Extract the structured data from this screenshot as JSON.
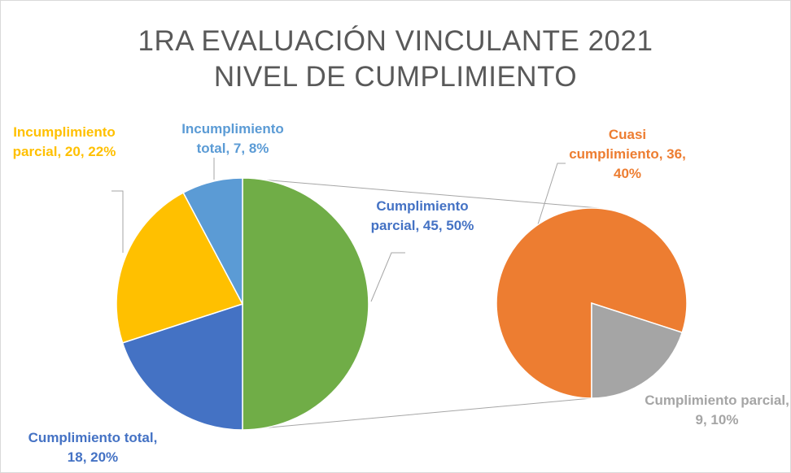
{
  "chart_data": {
    "type": "pie-of-pie",
    "title": [
      "1RA EVALUACIÓN  VINCULANTE  2021",
      "NIVEL  DE  CUMPLIMIENTO"
    ],
    "series": [
      {
        "values": [
          45,
          18,
          20,
          7
        ],
        "colors": [
          "#70ad47",
          "#4472c4",
          "#ffc000",
          "#5b9bd5"
        ],
        "value_labels": [
          "Cumplimiento parcial, 45, 50%",
          "Cumplimiento total, 18, 20%",
          "Incumplimiento parcial, 20, 22%",
          "Incumplimiento total, 7, 8%"
        ]
      },
      {
        "values": [
          36,
          9
        ],
        "colors": [
          "#ed7d31",
          "#a5a5a5"
        ],
        "value_labels": [
          "Cuasi cumplimiento, 36, 40%",
          "Cumplimiento parcial, 9, 10%"
        ]
      }
    ]
  }
}
